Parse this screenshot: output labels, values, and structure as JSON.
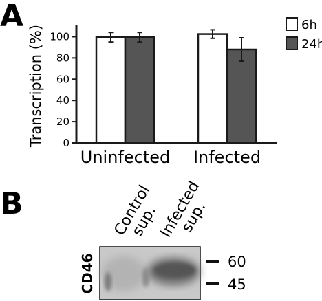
{
  "panel_a": {
    "letter": "A"
  },
  "panel_b": {
    "letter": "B",
    "lanes": [
      {
        "lines": [
          "Control",
          "sup."
        ]
      },
      {
        "lines": [
          "Infected",
          "sup."
        ]
      }
    ],
    "protein_label": "CD46",
    "markers": [
      "60",
      "45"
    ]
  },
  "chart_data": {
    "type": "bar",
    "title": "",
    "xlabel": "",
    "ylabel": "Transcription (%)",
    "categories": [
      "Uninfected",
      "Infected"
    ],
    "series": [
      {
        "name": "6h",
        "values": [
          99.5,
          102.5
        ],
        "errors": [
          4.5,
          4
        ],
        "color": "#ffffff"
      },
      {
        "name": "24h",
        "values": [
          99.5,
          88
        ],
        "errors": [
          4.5,
          11
        ],
        "color": "#555555"
      }
    ],
    "ylim": [
      0,
      110
    ],
    "yticks": [
      0,
      20,
      40,
      60,
      80,
      100
    ],
    "legend_position": "top-right",
    "grid": false
  }
}
